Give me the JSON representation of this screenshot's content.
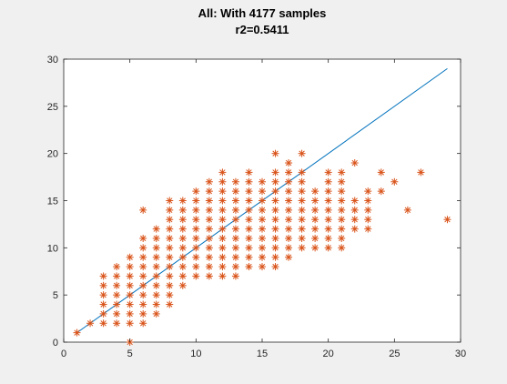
{
  "chart_data": {
    "type": "scatter",
    "title": "All: With 4177 samples",
    "subtitle": "r2=0.5411",
    "xlabel": "",
    "ylabel": "",
    "xlim": [
      0,
      30
    ],
    "ylim": [
      0,
      30
    ],
    "x_ticks": [
      0,
      5,
      10,
      15,
      20,
      25,
      30
    ],
    "y_ticks": [
      0,
      5,
      10,
      15,
      20,
      25,
      30
    ],
    "grid": false,
    "colors": {
      "points": "#D95319",
      "fit_line": "#0072BD",
      "background": "#f0f0f0",
      "axes": "#ffffff"
    },
    "fit_line": {
      "x": [
        1,
        29
      ],
      "y": [
        1,
        29
      ]
    },
    "marker": "asterisk",
    "points": [
      [
        1,
        1
      ],
      [
        2,
        2
      ],
      [
        3,
        2
      ],
      [
        3,
        3
      ],
      [
        3,
        4
      ],
      [
        3,
        5
      ],
      [
        3,
        6
      ],
      [
        3,
        7
      ],
      [
        4,
        2
      ],
      [
        4,
        3
      ],
      [
        4,
        4
      ],
      [
        4,
        5
      ],
      [
        4,
        6
      ],
      [
        4,
        7
      ],
      [
        4,
        8
      ],
      [
        5,
        0
      ],
      [
        5,
        2
      ],
      [
        5,
        3
      ],
      [
        5,
        4
      ],
      [
        5,
        5
      ],
      [
        5,
        6
      ],
      [
        5,
        7
      ],
      [
        5,
        8
      ],
      [
        5,
        9
      ],
      [
        6,
        2
      ],
      [
        6,
        3
      ],
      [
        6,
        4
      ],
      [
        6,
        5
      ],
      [
        6,
        6
      ],
      [
        6,
        7
      ],
      [
        6,
        8
      ],
      [
        6,
        9
      ],
      [
        6,
        10
      ],
      [
        6,
        11
      ],
      [
        6,
        14
      ],
      [
        7,
        3
      ],
      [
        7,
        4
      ],
      [
        7,
        5
      ],
      [
        7,
        6
      ],
      [
        7,
        7
      ],
      [
        7,
        8
      ],
      [
        7,
        9
      ],
      [
        7,
        10
      ],
      [
        7,
        11
      ],
      [
        7,
        12
      ],
      [
        8,
        4
      ],
      [
        8,
        5
      ],
      [
        8,
        6
      ],
      [
        8,
        7
      ],
      [
        8,
        8
      ],
      [
        8,
        9
      ],
      [
        8,
        10
      ],
      [
        8,
        11
      ],
      [
        8,
        12
      ],
      [
        8,
        13
      ],
      [
        8,
        14
      ],
      [
        8,
        15
      ],
      [
        9,
        6
      ],
      [
        9,
        7
      ],
      [
        9,
        8
      ],
      [
        9,
        9
      ],
      [
        9,
        10
      ],
      [
        9,
        11
      ],
      [
        9,
        12
      ],
      [
        9,
        13
      ],
      [
        9,
        14
      ],
      [
        9,
        15
      ],
      [
        10,
        7
      ],
      [
        10,
        8
      ],
      [
        10,
        9
      ],
      [
        10,
        10
      ],
      [
        10,
        11
      ],
      [
        10,
        12
      ],
      [
        10,
        13
      ],
      [
        10,
        14
      ],
      [
        10,
        15
      ],
      [
        10,
        16
      ],
      [
        11,
        7
      ],
      [
        11,
        8
      ],
      [
        11,
        9
      ],
      [
        11,
        10
      ],
      [
        11,
        11
      ],
      [
        11,
        12
      ],
      [
        11,
        13
      ],
      [
        11,
        14
      ],
      [
        11,
        15
      ],
      [
        11,
        16
      ],
      [
        11,
        17
      ],
      [
        12,
        7
      ],
      [
        12,
        8
      ],
      [
        12,
        9
      ],
      [
        12,
        10
      ],
      [
        12,
        11
      ],
      [
        12,
        12
      ],
      [
        12,
        13
      ],
      [
        12,
        14
      ],
      [
        12,
        15
      ],
      [
        12,
        16
      ],
      [
        12,
        17
      ],
      [
        12,
        18
      ],
      [
        13,
        7
      ],
      [
        13,
        8
      ],
      [
        13,
        9
      ],
      [
        13,
        10
      ],
      [
        13,
        11
      ],
      [
        13,
        12
      ],
      [
        13,
        13
      ],
      [
        13,
        14
      ],
      [
        13,
        15
      ],
      [
        13,
        16
      ],
      [
        13,
        17
      ],
      [
        14,
        8
      ],
      [
        14,
        9
      ],
      [
        14,
        10
      ],
      [
        14,
        11
      ],
      [
        14,
        12
      ],
      [
        14,
        13
      ],
      [
        14,
        14
      ],
      [
        14,
        15
      ],
      [
        14,
        16
      ],
      [
        14,
        17
      ],
      [
        14,
        18
      ],
      [
        15,
        8
      ],
      [
        15,
        9
      ],
      [
        15,
        10
      ],
      [
        15,
        11
      ],
      [
        15,
        12
      ],
      [
        15,
        13
      ],
      [
        15,
        14
      ],
      [
        15,
        15
      ],
      [
        15,
        16
      ],
      [
        15,
        17
      ],
      [
        16,
        8
      ],
      [
        16,
        9
      ],
      [
        16,
        10
      ],
      [
        16,
        11
      ],
      [
        16,
        12
      ],
      [
        16,
        13
      ],
      [
        16,
        14
      ],
      [
        16,
        15
      ],
      [
        16,
        16
      ],
      [
        16,
        17
      ],
      [
        16,
        18
      ],
      [
        16,
        20
      ],
      [
        17,
        9
      ],
      [
        17,
        10
      ],
      [
        17,
        11
      ],
      [
        17,
        12
      ],
      [
        17,
        13
      ],
      [
        17,
        14
      ],
      [
        17,
        15
      ],
      [
        17,
        16
      ],
      [
        17,
        17
      ],
      [
        17,
        18
      ],
      [
        17,
        19
      ],
      [
        18,
        10
      ],
      [
        18,
        11
      ],
      [
        18,
        12
      ],
      [
        18,
        13
      ],
      [
        18,
        14
      ],
      [
        18,
        15
      ],
      [
        18,
        16
      ],
      [
        18,
        17
      ],
      [
        18,
        18
      ],
      [
        18,
        20
      ],
      [
        19,
        10
      ],
      [
        19,
        11
      ],
      [
        19,
        12
      ],
      [
        19,
        13
      ],
      [
        19,
        14
      ],
      [
        19,
        15
      ],
      [
        19,
        16
      ],
      [
        20,
        10
      ],
      [
        20,
        11
      ],
      [
        20,
        12
      ],
      [
        20,
        13
      ],
      [
        20,
        14
      ],
      [
        20,
        15
      ],
      [
        20,
        16
      ],
      [
        20,
        17
      ],
      [
        20,
        18
      ],
      [
        21,
        10
      ],
      [
        21,
        11
      ],
      [
        21,
        12
      ],
      [
        21,
        13
      ],
      [
        21,
        14
      ],
      [
        21,
        15
      ],
      [
        21,
        16
      ],
      [
        21,
        17
      ],
      [
        21,
        18
      ],
      [
        22,
        12
      ],
      [
        22,
        13
      ],
      [
        22,
        14
      ],
      [
        22,
        15
      ],
      [
        22,
        19
      ],
      [
        23,
        12
      ],
      [
        23,
        13
      ],
      [
        23,
        14
      ],
      [
        23,
        15
      ],
      [
        23,
        16
      ],
      [
        24,
        16
      ],
      [
        24,
        18
      ],
      [
        25,
        17
      ],
      [
        26,
        14
      ],
      [
        27,
        18
      ],
      [
        29,
        13
      ]
    ]
  }
}
